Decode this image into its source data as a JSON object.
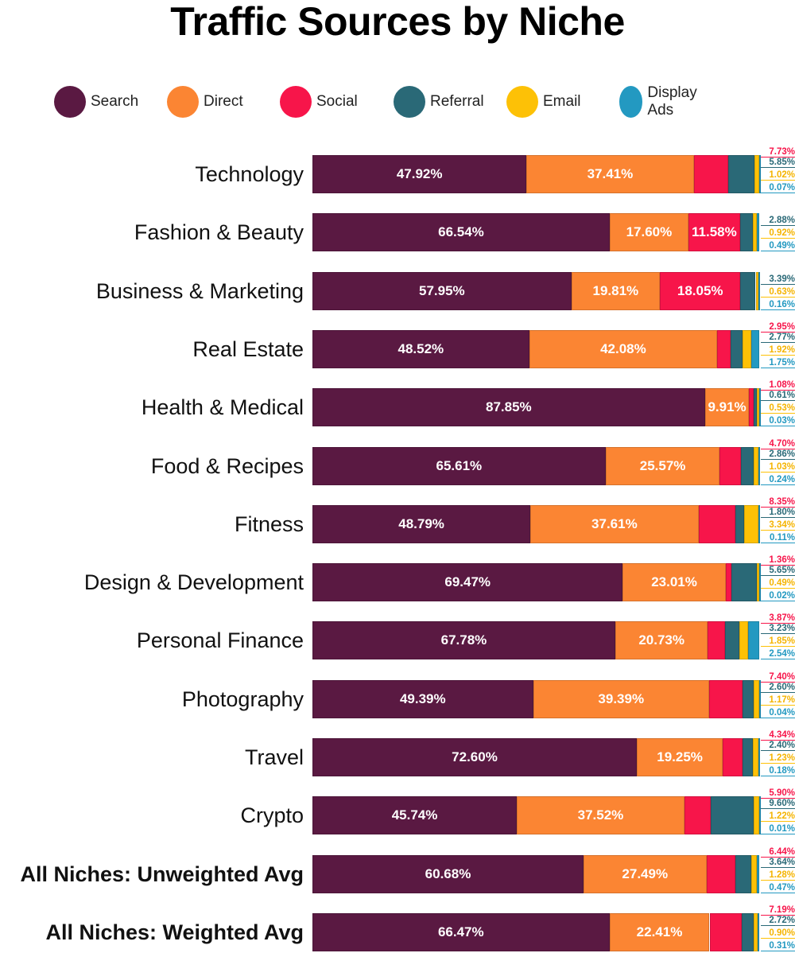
{
  "chart_data": {
    "type": "bar",
    "orientation": "horizontal",
    "stacked": true,
    "title": "Traffic Sources by Niche",
    "xlim": [
      0,
      100
    ],
    "legend_position": "top",
    "categories": [
      "Technology",
      "Fashion & Beauty",
      "Business & Marketing",
      "Real Estate",
      "Health & Medical",
      "Food & Recipes",
      "Fitness",
      "Design & Development",
      "Personal Finance",
      "Photography",
      "Travel",
      "Crypto",
      "All Niches: Unweighted Avg",
      "All Niches: Weighted Avg"
    ],
    "series": [
      {
        "name": "Search",
        "color": "#5a1942",
        "values": [
          47.92,
          66.54,
          57.95,
          48.52,
          87.85,
          65.61,
          48.79,
          69.47,
          67.78,
          49.39,
          72.6,
          45.74,
          60.68,
          66.47
        ]
      },
      {
        "name": "Direct",
        "color": "#fb8533",
        "values": [
          37.41,
          17.6,
          19.81,
          42.08,
          9.91,
          25.57,
          37.61,
          23.01,
          20.73,
          39.39,
          19.25,
          37.52,
          27.49,
          22.41
        ]
      },
      {
        "name": "Social",
        "color": "#f7154a",
        "values": [
          7.73,
          11.58,
          18.05,
          2.95,
          1.08,
          4.7,
          8.35,
          1.36,
          3.87,
          7.4,
          4.34,
          5.9,
          6.44,
          7.19
        ]
      },
      {
        "name": "Referral",
        "color": "#2a6977",
        "values": [
          5.85,
          2.88,
          3.39,
          2.77,
          0.61,
          2.86,
          1.8,
          5.65,
          3.23,
          2.6,
          2.4,
          9.6,
          3.64,
          2.72
        ]
      },
      {
        "name": "Email",
        "color": "#fdc106",
        "values": [
          1.02,
          0.92,
          0.63,
          1.92,
          0.53,
          1.03,
          3.34,
          0.49,
          1.85,
          1.17,
          1.23,
          1.22,
          1.28,
          0.9
        ]
      },
      {
        "name": "Display Ads",
        "color": "#2399c1",
        "values": [
          0.07,
          0.49,
          0.16,
          1.75,
          0.03,
          0.24,
          0.11,
          0.02,
          2.54,
          0.04,
          0.18,
          0.01,
          0.47,
          0.31
        ]
      }
    ],
    "bold_categories": [
      "All Niches: Unweighted Avg",
      "All Niches: Weighted Avg"
    ]
  }
}
